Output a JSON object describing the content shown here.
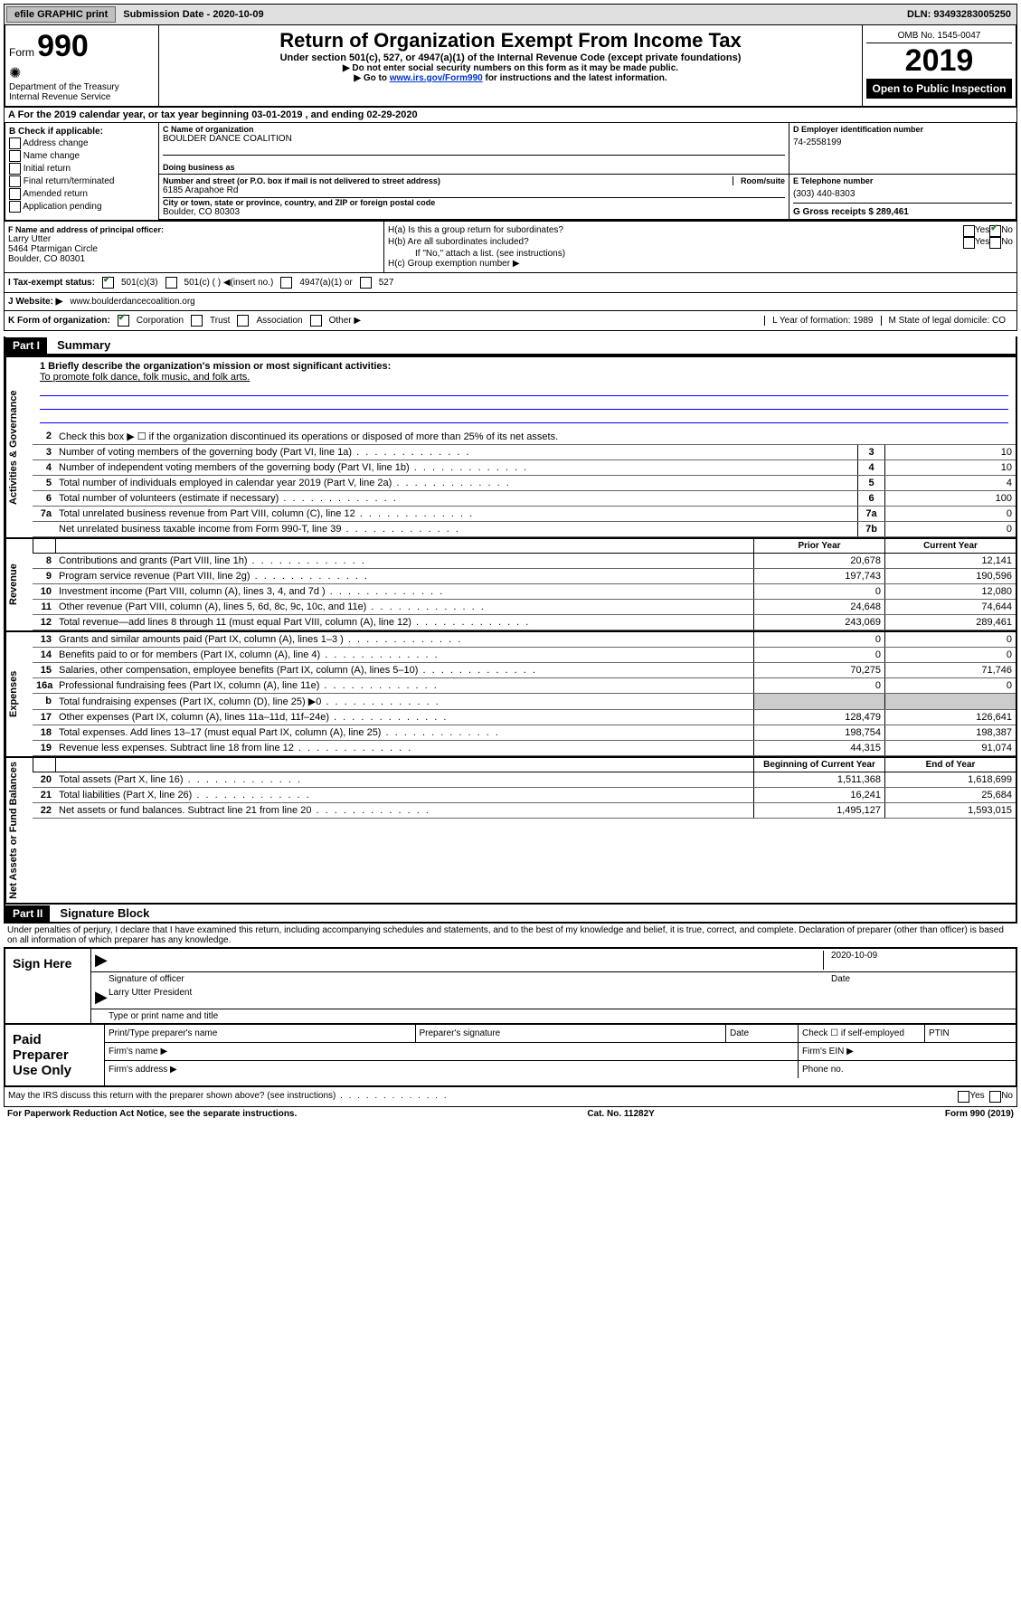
{
  "topbar": {
    "efile": "efile GRAPHIC print",
    "sub_label": "Submission Date - 2020-10-09",
    "dln": "DLN: 93493283005250"
  },
  "header": {
    "form_label": "Form",
    "form_number": "990",
    "dept": "Department of the Treasury\nInternal Revenue Service",
    "title": "Return of Organization Exempt From Income Tax",
    "subtitle": "Under section 501(c), 527, or 4947(a)(1) of the Internal Revenue Code (except private foundations)",
    "instr1": "▶ Do not enter social security numbers on this form as it may be made public.",
    "instr2a": "▶ Go to ",
    "instr2b": "www.irs.gov/Form990",
    "instr2c": " for instructions and the latest information.",
    "omb": "OMB No. 1545-0047",
    "year": "2019",
    "open": "Open to Public Inspection"
  },
  "A": {
    "text": "A For the 2019 calendar year, or tax year beginning 03-01-2019   , and ending 02-29-2020"
  },
  "B": {
    "label": "B Check if applicable:",
    "opts": [
      "Address change",
      "Name change",
      "Initial return",
      "Final return/terminated",
      "Amended return",
      "Application pending"
    ]
  },
  "C": {
    "name_label": "C Name of organization",
    "name": "BOULDER DANCE COALITION",
    "dba_label": "Doing business as",
    "addr_label": "Number and street (or P.O. box if mail is not delivered to street address)",
    "room_label": "Room/suite",
    "addr": "6185 Arapahoe Rd",
    "city_label": "City or town, state or province, country, and ZIP or foreign postal code",
    "city": "Boulder, CO  80303"
  },
  "D": {
    "label": "D Employer identification number",
    "val": "74-2558199"
  },
  "E": {
    "label": "E Telephone number",
    "val": "(303) 440-8303"
  },
  "G": {
    "label": "G Gross receipts $ 289,461"
  },
  "F": {
    "label": "F  Name and address of principal officer:",
    "name": "Larry Utter",
    "addr": "5464 Ptarmigan Circle\nBoulder, CO  80301"
  },
  "H": {
    "a": "H(a)  Is this a group return for subordinates?",
    "b": "H(b)  Are all subordinates included?",
    "b_note": "If \"No,\" attach a list. (see instructions)",
    "c": "H(c)  Group exemption number ▶"
  },
  "I": {
    "label": "I  Tax-exempt status:",
    "opts": [
      "501(c)(3)",
      "501(c) (  ) ◀(insert no.)",
      "4947(a)(1) or",
      "527"
    ]
  },
  "J": {
    "label": "J  Website: ▶",
    "val": "www.boulderdancecoalition.org"
  },
  "K": {
    "label": "K Form of organization:",
    "opts": [
      "Corporation",
      "Trust",
      "Association",
      "Other ▶"
    ],
    "L": "L Year of formation: 1989",
    "M": "M State of legal domicile: CO"
  },
  "part1": {
    "label": "Part I",
    "title": "Summary"
  },
  "mission": {
    "q": "1  Briefly describe the organization's mission or most significant activities:",
    "a": "To promote folk dance, folk music, and folk arts."
  },
  "gov_lines": {
    "l2": "Check this box ▶ ☐  if the organization discontinued its operations or disposed of more than 25% of its net assets.",
    "l3": {
      "t": "Number of voting members of the governing body (Part VI, line 1a)",
      "n": "3",
      "v": "10"
    },
    "l4": {
      "t": "Number of independent voting members of the governing body (Part VI, line 1b)",
      "n": "4",
      "v": "10"
    },
    "l5": {
      "t": "Total number of individuals employed in calendar year 2019 (Part V, line 2a)",
      "n": "5",
      "v": "4"
    },
    "l6": {
      "t": "Total number of volunteers (estimate if necessary)",
      "n": "6",
      "v": "100"
    },
    "l7a": {
      "t": "Total unrelated business revenue from Part VIII, column (C), line 12",
      "n": "7a",
      "v": "0"
    },
    "l7b": {
      "t": "Net unrelated business taxable income from Form 990-T, line 39",
      "n": "7b",
      "v": "0"
    }
  },
  "col_headers": {
    "prior": "Prior Year",
    "current": "Current Year"
  },
  "revenue": [
    {
      "n": "8",
      "t": "Contributions and grants (Part VIII, line 1h)",
      "p": "20,678",
      "c": "12,141"
    },
    {
      "n": "9",
      "t": "Program service revenue (Part VIII, line 2g)",
      "p": "197,743",
      "c": "190,596"
    },
    {
      "n": "10",
      "t": "Investment income (Part VIII, column (A), lines 3, 4, and 7d )",
      "p": "0",
      "c": "12,080"
    },
    {
      "n": "11",
      "t": "Other revenue (Part VIII, column (A), lines 5, 6d, 8c, 9c, 10c, and 11e)",
      "p": "24,648",
      "c": "74,644"
    },
    {
      "n": "12",
      "t": "Total revenue—add lines 8 through 11 (must equal Part VIII, column (A), line 12)",
      "p": "243,069",
      "c": "289,461"
    }
  ],
  "expenses": [
    {
      "n": "13",
      "t": "Grants and similar amounts paid (Part IX, column (A), lines 1–3 )",
      "p": "0",
      "c": "0"
    },
    {
      "n": "14",
      "t": "Benefits paid to or for members (Part IX, column (A), line 4)",
      "p": "0",
      "c": "0"
    },
    {
      "n": "15",
      "t": "Salaries, other compensation, employee benefits (Part IX, column (A), lines 5–10)",
      "p": "70,275",
      "c": "71,746"
    },
    {
      "n": "16a",
      "t": "Professional fundraising fees (Part IX, column (A), line 11e)",
      "p": "0",
      "c": "0"
    },
    {
      "n": "b",
      "t": "Total fundraising expenses (Part IX, column (D), line 25) ▶0",
      "p": "",
      "c": "",
      "shaded": true
    },
    {
      "n": "17",
      "t": "Other expenses (Part IX, column (A), lines 11a–11d, 11f–24e)",
      "p": "128,479",
      "c": "126,641"
    },
    {
      "n": "18",
      "t": "Total expenses. Add lines 13–17 (must equal Part IX, column (A), line 25)",
      "p": "198,754",
      "c": "198,387"
    },
    {
      "n": "19",
      "t": "Revenue less expenses. Subtract line 18 from line 12",
      "p": "44,315",
      "c": "91,074"
    }
  ],
  "col_headers2": {
    "prior": "Beginning of Current Year",
    "current": "End of Year"
  },
  "netassets": [
    {
      "n": "20",
      "t": "Total assets (Part X, line 16)",
      "p": "1,511,368",
      "c": "1,618,699"
    },
    {
      "n": "21",
      "t": "Total liabilities (Part X, line 26)",
      "p": "16,241",
      "c": "25,684"
    },
    {
      "n": "22",
      "t": "Net assets or fund balances. Subtract line 21 from line 20",
      "p": "1,495,127",
      "c": "1,593,015"
    }
  ],
  "sections": {
    "gov": "Activities & Governance",
    "rev": "Revenue",
    "exp": "Expenses",
    "net": "Net Assets or Fund Balances"
  },
  "part2": {
    "label": "Part II",
    "title": "Signature Block"
  },
  "perjury": "Under penalties of perjury, I declare that I have examined this return, including accompanying schedules and statements, and to the best of my knowledge and belief, it is true, correct, and complete. Declaration of preparer (other than officer) is based on all information of which preparer has any knowledge.",
  "sign": {
    "here": "Sign Here",
    "sig_label": "Signature of officer",
    "date_label": "Date",
    "date": "2020-10-09",
    "name": "Larry Utter  President",
    "name_label": "Type or print name and title"
  },
  "preparer": {
    "label": "Paid Preparer Use Only",
    "col1": "Print/Type preparer's name",
    "col2": "Preparer's signature",
    "col3": "Date",
    "col4": "Check ☐ if self-employed",
    "col5": "PTIN",
    "firm_name": "Firm's name  ▶",
    "firm_ein": "Firm's EIN ▶",
    "firm_addr": "Firm's address ▶",
    "phone": "Phone no."
  },
  "discuss": "May the IRS discuss this return with the preparer shown above? (see instructions)",
  "footer": {
    "l": "For Paperwork Reduction Act Notice, see the separate instructions.",
    "c": "Cat. No. 11282Y",
    "r": "Form 990 (2019)"
  }
}
